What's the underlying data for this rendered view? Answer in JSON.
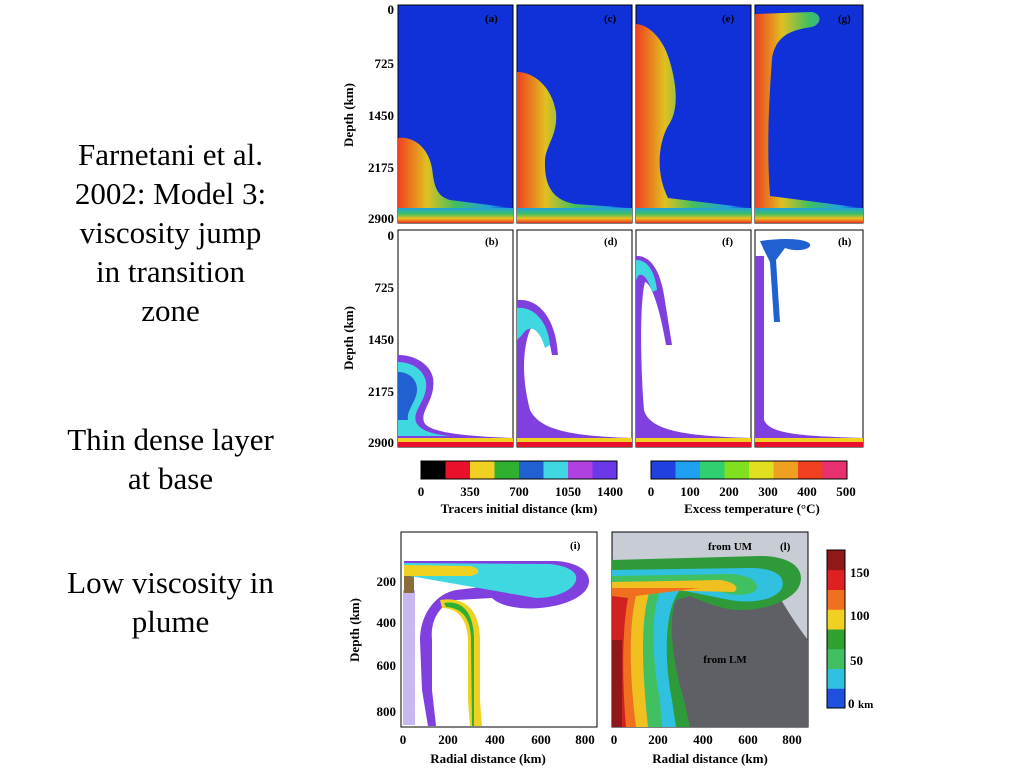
{
  "slide_text": {
    "heading_lines": [
      "Farnetani et al.",
      "2002: Model 3:",
      "viscosity jump",
      "in transition",
      "zone"
    ],
    "note1_lines": [
      "Thin dense layer",
      "at base"
    ],
    "note2_lines": [
      "Low viscosity in",
      "plume"
    ]
  },
  "figure": {
    "panels_top": [
      "(a)",
      "(c)",
      "(e)",
      "(g)"
    ],
    "panels_mid": [
      "(b)",
      "(d)",
      "(f)",
      "(h)"
    ],
    "panel_i": "(i)",
    "panel_l": "(l)",
    "depth_label": "Depth (km)",
    "depth_ticks": [
      "0",
      "725",
      "1450",
      "2175",
      "2900"
    ],
    "colorbar_tracers": {
      "colors": [
        "#000000",
        "#e8102a",
        "#f0d020",
        "#30b030",
        "#2060d0",
        "#40d8e0",
        "#b040e0",
        "#6a38e8"
      ],
      "ticks": [
        "0",
        "350",
        "700",
        "1050",
        "1400"
      ],
      "label": "Tracers initial distance (km)"
    },
    "colorbar_temp": {
      "colors": [
        "#2040e0",
        "#20a0f0",
        "#30d070",
        "#80e020",
        "#e0e020",
        "#f0a020",
        "#f04020",
        "#e83070"
      ],
      "ticks": [
        "0",
        "100",
        "200",
        "300",
        "400",
        "500"
      ],
      "label": "Excess temperature (°C)"
    },
    "bottom_depth_label": "Depth (km)",
    "bottom_depth_ticks": [
      "200",
      "400",
      "600",
      "800"
    ],
    "radial_label": "Radial distance (km)",
    "radial_ticks": [
      "0",
      "200",
      "400",
      "600",
      "800"
    ],
    "from_um": "from UM",
    "from_lm": "from LM",
    "right_colorbar": {
      "colors": [
        "#2050e0",
        "#30c0e0",
        "#40c060",
        "#30a030",
        "#f0d020",
        "#f07020",
        "#e02020",
        "#901818"
      ],
      "ticks": [
        "0",
        "50",
        "100",
        "150"
      ],
      "unit": "km"
    }
  }
}
